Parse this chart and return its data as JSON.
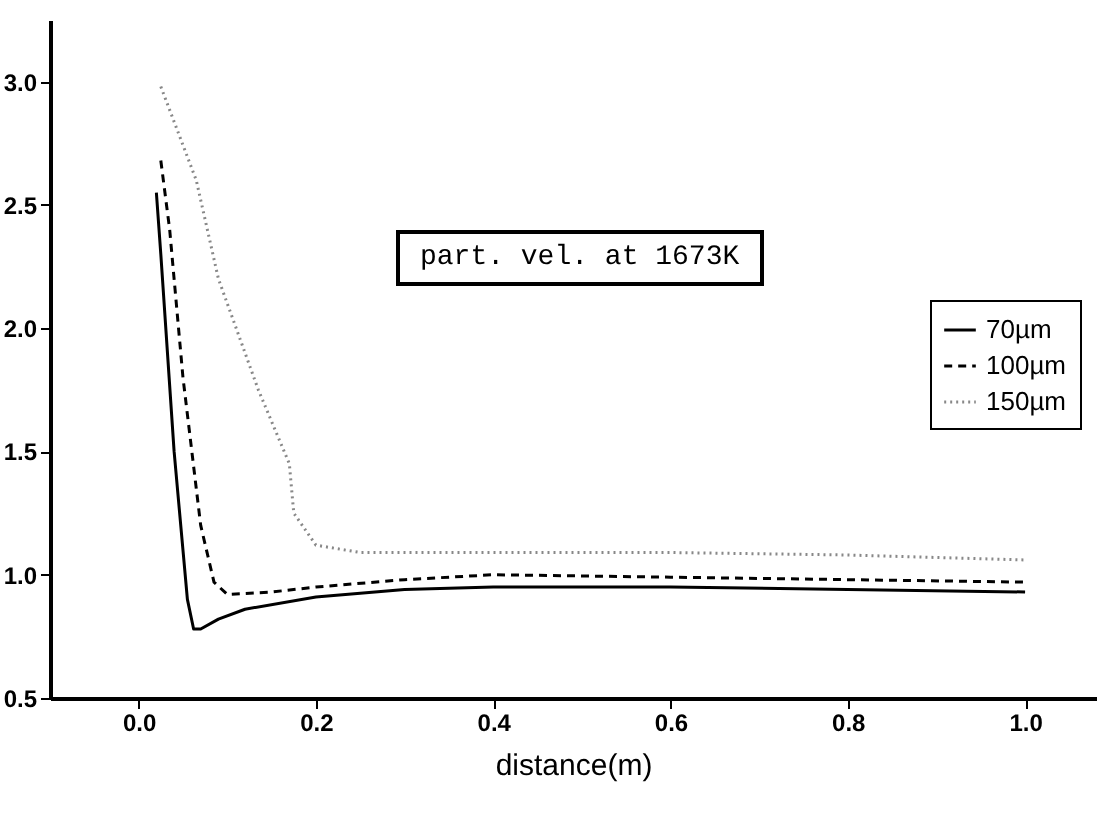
{
  "chart_data": {
    "type": "line",
    "xlabel": "distance(m)",
    "annotations": [
      "part. vel. at 1673K"
    ],
    "xlim": [
      -0.1,
      1.08
    ],
    "ylim": [
      0.5,
      3.25
    ],
    "xticks": [
      {
        "value": 0,
        "label": "0.0"
      },
      {
        "value": 0.2,
        "label": "0.2"
      },
      {
        "value": 0.4,
        "label": "0.4"
      },
      {
        "value": 0.6,
        "label": "0.6"
      },
      {
        "value": 0.8,
        "label": "0.8"
      },
      {
        "value": 1.0,
        "label": "1.0"
      }
    ],
    "yticks": [
      {
        "value": 0.5,
        "label": "0.5"
      },
      {
        "value": 1.0,
        "label": "1.0"
      },
      {
        "value": 1.5,
        "label": "1.5"
      },
      {
        "value": 2.0,
        "label": "2.0"
      },
      {
        "value": 2.5,
        "label": "2.5"
      },
      {
        "value": 3.0,
        "label": "3.0"
      }
    ],
    "grid": false,
    "legend": "right",
    "marker": "none",
    "series": [
      {
        "name": "70µm",
        "color": "#000000",
        "line_style": "solid",
        "x": [
          0.02,
          0.025,
          0.04,
          0.055,
          0.062,
          0.07,
          0.09,
          0.12,
          0.2,
          0.3,
          0.4,
          0.6,
          0.8,
          1.0
        ],
        "values": [
          2.55,
          2.3,
          1.5,
          0.9,
          0.78,
          0.78,
          0.82,
          0.86,
          0.91,
          0.94,
          0.95,
          0.95,
          0.94,
          0.93
        ]
      },
      {
        "name": "100µm",
        "color": "#000000",
        "line_style": "dashed",
        "x": [
          0.025,
          0.035,
          0.05,
          0.07,
          0.085,
          0.1,
          0.15,
          0.2,
          0.3,
          0.4,
          0.6,
          0.8,
          1.0
        ],
        "values": [
          2.68,
          2.4,
          1.8,
          1.2,
          0.97,
          0.92,
          0.93,
          0.95,
          0.98,
          1.0,
          0.99,
          0.98,
          0.97
        ]
      },
      {
        "name": "150µm",
        "color": "#888888",
        "line_style": "dotted",
        "x": [
          0.025,
          0.065,
          0.09,
          0.12,
          0.135,
          0.17,
          0.175,
          0.2,
          0.25,
          0.4,
          0.6,
          0.8,
          1.0
        ],
        "values": [
          2.98,
          2.6,
          2.2,
          1.9,
          1.75,
          1.45,
          1.25,
          1.12,
          1.09,
          1.09,
          1.09,
          1.08,
          1.06
        ]
      }
    ]
  }
}
